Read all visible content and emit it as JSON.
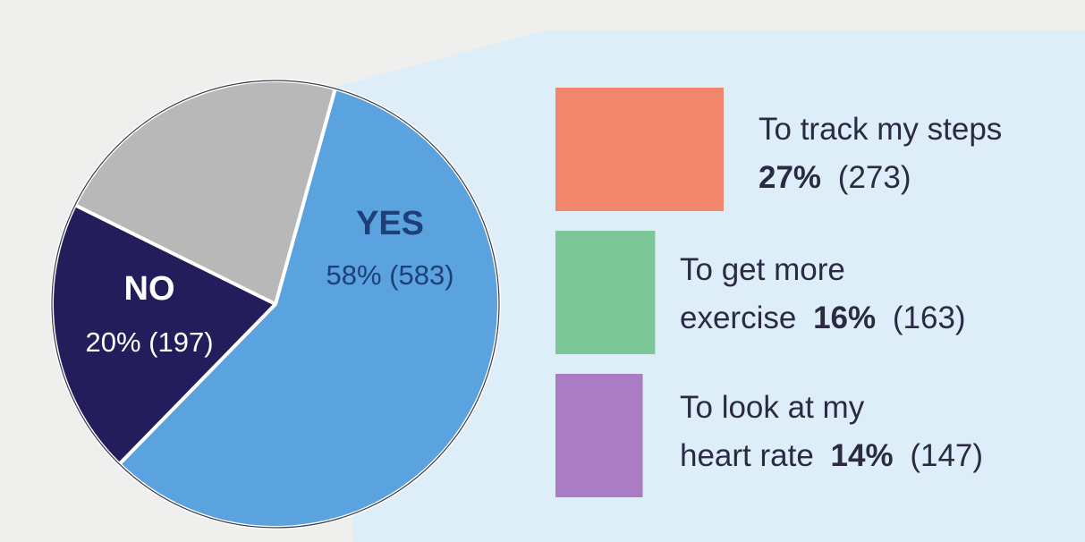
{
  "chart_data": [
    {
      "type": "pie",
      "slices": [
        {
          "label": "YES",
          "percent": 58,
          "count": 583,
          "value_text": "58% (583)",
          "color": "#5aa3df"
        },
        {
          "label": "NO",
          "percent": 20,
          "count": 197,
          "value_text": "20% (197)",
          "color": "#241d5c"
        },
        {
          "label": "",
          "percent": 22,
          "count": null,
          "value_text": "",
          "color": "#b8b8b8"
        }
      ]
    },
    {
      "type": "bar",
      "orientation": "horizontal",
      "bars": [
        {
          "line1": "To track my steps",
          "pct_text": "27%",
          "count_text": "(273)",
          "percent": 27,
          "count": 273,
          "color": "#f0866b"
        },
        {
          "line1": "To get more",
          "line2_prefix": "exercise",
          "pct_text": "16%",
          "count_text": "(163)",
          "percent": 16,
          "count": 163,
          "color": "#7cc698"
        },
        {
          "line1": "To look at my",
          "line2_prefix": "heart rate",
          "pct_text": "14%",
          "count_text": "(147)",
          "percent": 14,
          "count": 147,
          "color": "#a97cc4"
        }
      ]
    }
  ],
  "colors": {
    "panel": "#ddeef9",
    "text": "#2a2a44",
    "yes_title": "#1f3f7a",
    "no_text": "#ffffff",
    "background": "#efefed"
  }
}
